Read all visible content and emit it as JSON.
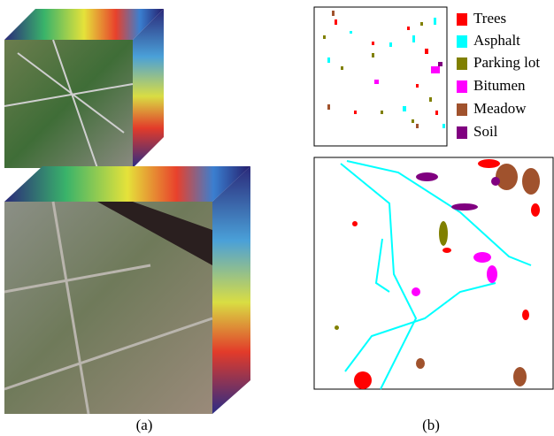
{
  "legend": [
    {
      "label": "Trees",
      "color": "#ff0000"
    },
    {
      "label": "Asphalt",
      "color": "#00ffff"
    },
    {
      "label": "Parking lot",
      "color": "#808000"
    },
    {
      "label": "Bitumen",
      "color": "#ff00ff"
    },
    {
      "label": "Meadow",
      "color": "#a0522d"
    },
    {
      "label": "Soil",
      "color": "#800080"
    }
  ],
  "captions": [
    "(a)",
    "(b)"
  ]
}
